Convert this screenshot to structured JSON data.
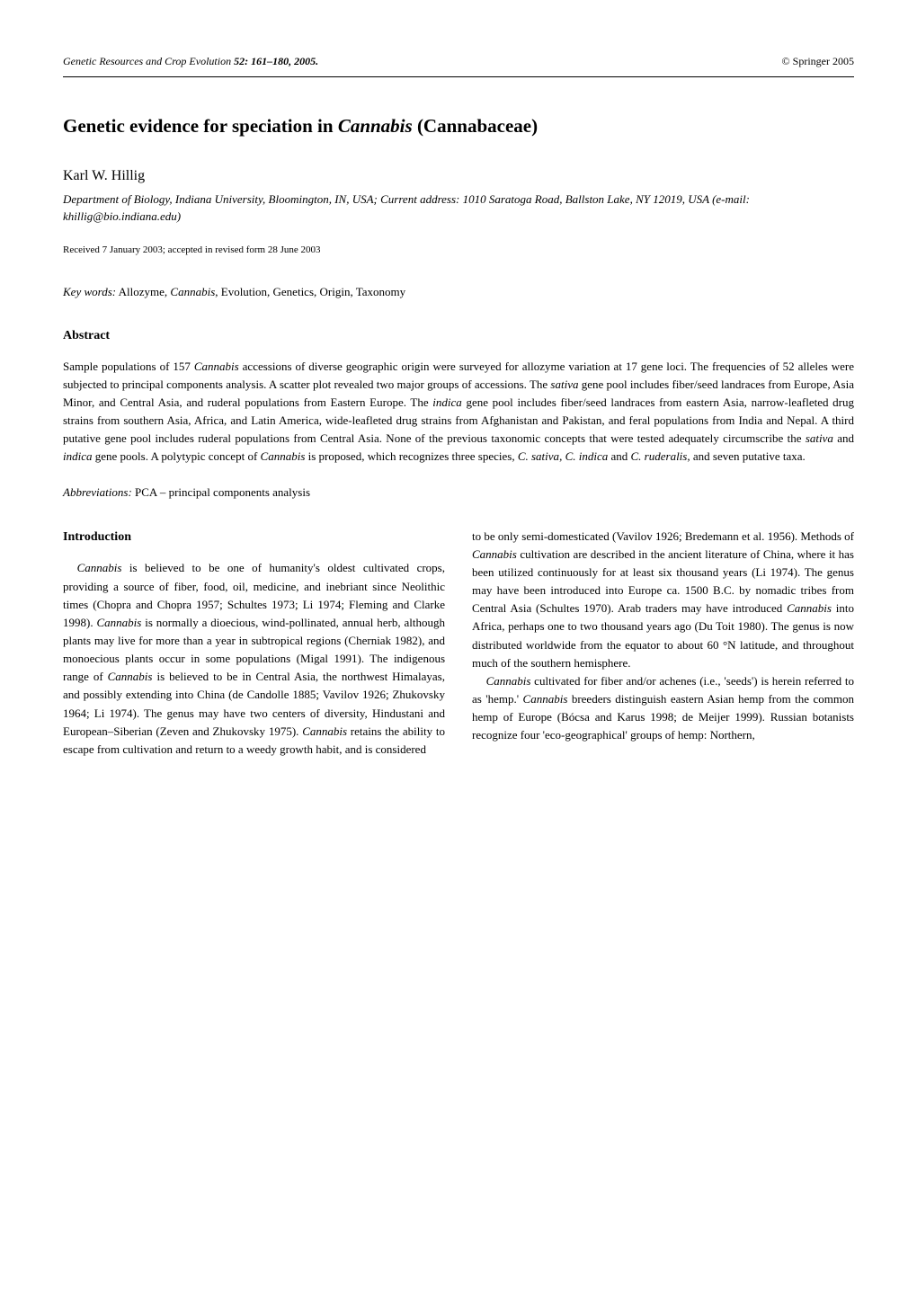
{
  "header": {
    "journal": "Genetic Resources and Crop Evolution",
    "volume_pages": "52: 161–180, 2005.",
    "copyright": "© Springer 2005"
  },
  "title": {
    "prefix": "Genetic evidence for speciation in ",
    "genus": "Cannabis",
    "suffix": " (Cannabaceae)"
  },
  "author": "Karl W. Hillig",
  "affiliation": "Department of Biology, Indiana University, Bloomington, IN, USA; Current address: 1010 Saratoga Road, Ballston Lake, NY 12019, USA (e-mail: khillig@bio.indiana.edu)",
  "received": "Received 7 January 2003; accepted in revised form 28 June 2003",
  "keywords": {
    "label": "Key words:",
    "text_prefix": " Allozyme, ",
    "genus": "Cannabis",
    "text_suffix": ", Evolution, Genetics, Origin, Taxonomy"
  },
  "abstract_heading": "Abstract",
  "abstract": {
    "p1_a": "Sample populations of 157 ",
    "p1_g1": "Cannabis",
    "p1_b": " accessions of diverse geographic origin were surveyed for allozyme variation at 17 gene loci. The frequencies of 52 alleles were subjected to principal components analysis. A scatter plot revealed two major groups of accessions. The ",
    "p1_g2": "sativa",
    "p1_c": " gene pool includes fiber/seed landraces from Europe, Asia Minor, and Central Asia, and ruderal populations from Eastern Europe. The ",
    "p1_g3": "indica",
    "p1_d": " gene pool includes fiber/seed landraces from eastern Asia, narrow-leafleted drug strains from southern Asia, Africa, and Latin America, wide-leafleted drug strains from Afghanistan and Pakistan, and feral populations from India and Nepal. A third putative gene pool includes ruderal populations from Central Asia. None of the previous taxonomic concepts that were tested adequately circumscribe the ",
    "p1_g4": "sativa",
    "p1_e": " and ",
    "p1_g5": "indica",
    "p1_f": " gene pools. A polytypic concept of ",
    "p1_g6": "Cannabis",
    "p1_g": " is proposed, which recognizes three species, ",
    "p1_g7": "C. sativa",
    "p1_h": ", ",
    "p1_g8": "C. indica",
    "p1_i": " and ",
    "p1_g9": "C. ruderalis",
    "p1_j": ", and seven putative taxa."
  },
  "abbreviations": {
    "label": "Abbreviations:",
    "text": "  PCA – principal components analysis"
  },
  "intro_heading": "Introduction",
  "left_column": {
    "p1_g1": "Cannabis",
    "p1_a": " is believed to be one of humanity's oldest cultivated crops, providing a source of fiber, food, oil, medicine, and inebriant since Neolithic times (Chopra and Chopra 1957; Schultes 1973; Li 1974; Fleming and Clarke 1998). ",
    "p1_g2": "Cannabis",
    "p1_b": " is normally a dioecious, wind-pollinated, annual herb, although plants may live for more than a year in subtropical regions (Cherniak 1982), and monoecious plants occur in some populations (Migal 1991). The indigenous range of ",
    "p1_g3": "Cannabis",
    "p1_c": " is believed to be in Central Asia, the northwest Himalayas, and possibly extending into China (de Candolle 1885; Vavilov 1926; Zhukovsky 1964; Li 1974). The genus may have two centers of diversity, Hindustani and European–Siberian (Zeven and Zhukovsky 1975). ",
    "p1_g4": "Cannabis",
    "p1_d": " retains the ability to escape from cultivation and return to a weedy growth habit, and is considered"
  },
  "right_column": {
    "p1_a": "to be only semi-domesticated (Vavilov 1926; Bredemann et al. 1956). Methods of ",
    "p1_g1": "Cannabis",
    "p1_b": " cultivation are described in the ancient literature of China, where it has been utilized continuously for at least six thousand years (Li 1974). The genus may have been introduced into Europe ca. 1500 B.C. by nomadic tribes from Central Asia (Schultes 1970). Arab traders may have introduced ",
    "p1_g2": "Cannabis",
    "p1_c": " into Africa, perhaps one to two thousand years ago (Du Toit 1980). The genus is now distributed worldwide from the equator to about 60 °N latitude, and throughout much of the southern hemisphere.",
    "p2_g1": "Cannabis",
    "p2_a": " cultivated for fiber and/or achenes (i.e., 'seeds') is herein referred to as 'hemp.' ",
    "p2_g2": "Cannabis",
    "p2_b": " breeders distinguish eastern Asian hemp from the common hemp of Europe (Bócsa and Karus 1998; de Meijer 1999). Russian botanists recognize four 'eco-geographical' groups of hemp: Northern,"
  }
}
